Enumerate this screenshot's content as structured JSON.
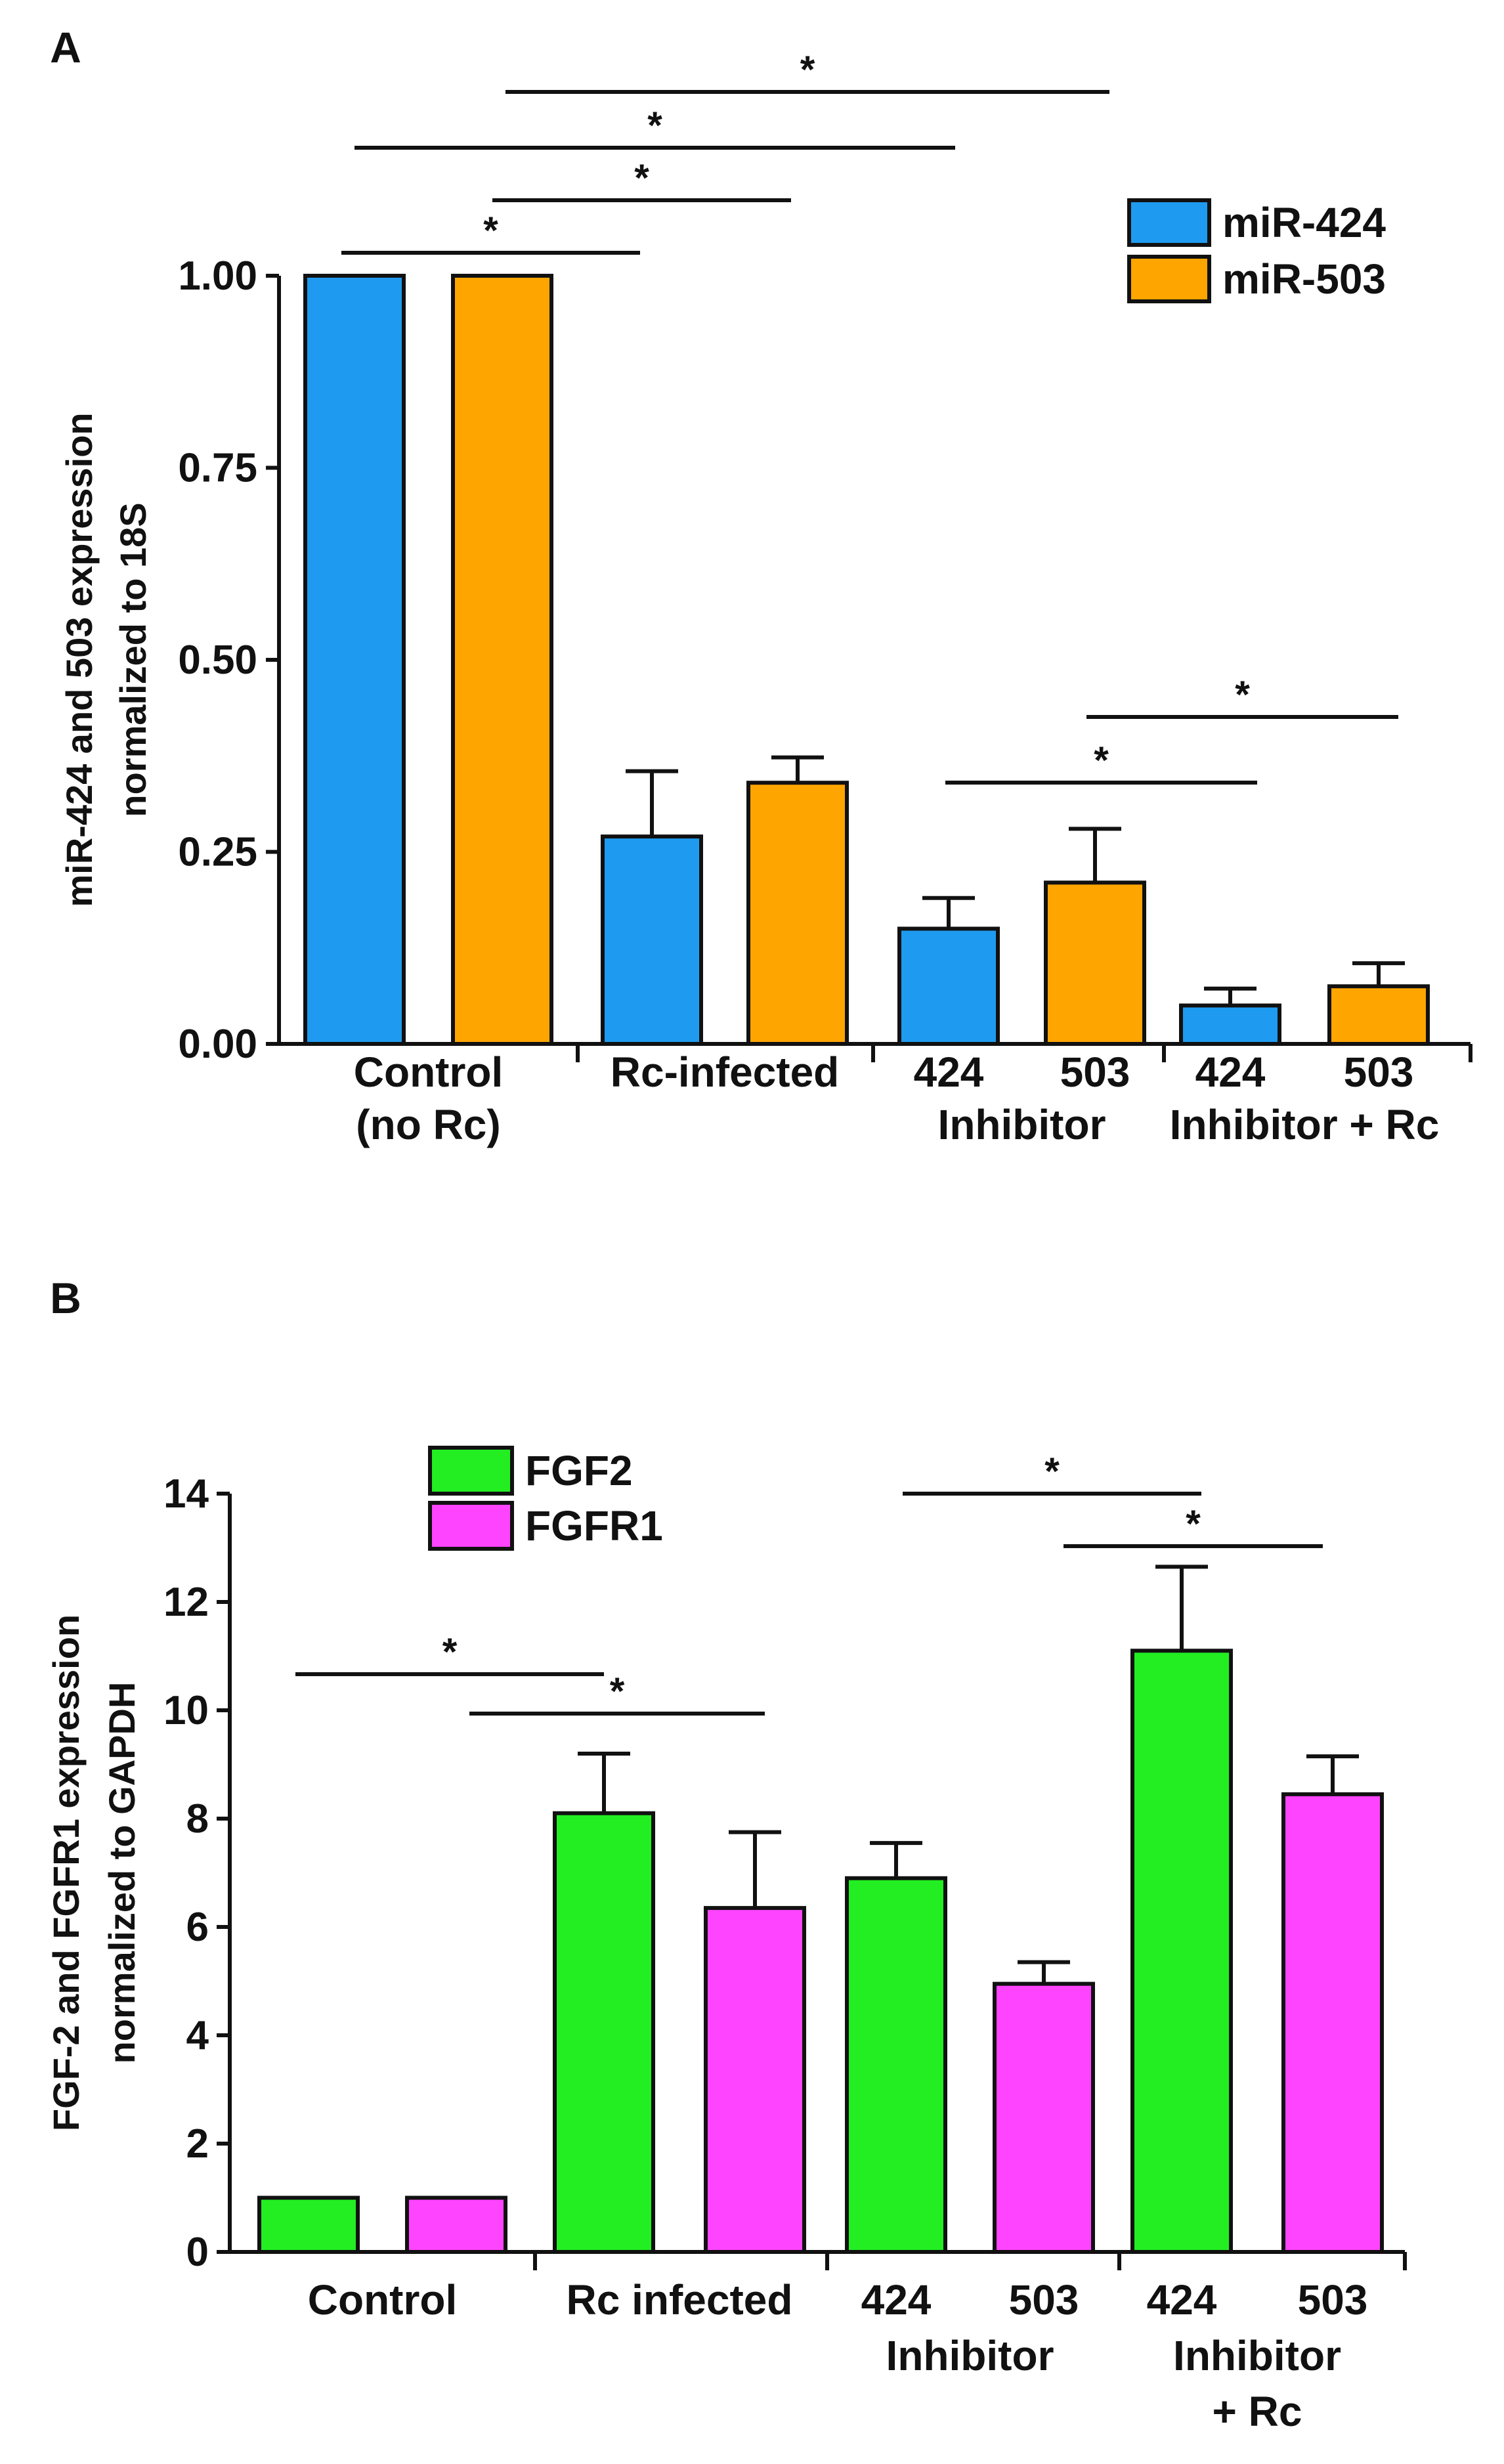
{
  "chart_data": [
    {
      "panel": "A",
      "type": "bar",
      "ylabel": "miR-424 and 503 expression normalized to 18S",
      "ylabel_lines": [
        "miR-424 and 503 expression",
        "normalized to 18S"
      ],
      "ylim": [
        0,
        1.0
      ],
      "yticks": [
        "0.00",
        "0.25",
        "0.50",
        "0.75",
        "1.00"
      ],
      "ytick_values": [
        0,
        0.25,
        0.5,
        0.75,
        1.0
      ],
      "groups": [
        {
          "lines": [
            "Control",
            "(no Rc)"
          ]
        },
        {
          "lines": [
            "Rc-infected"
          ]
        },
        {
          "lines": [
            "424",
            "503",
            "Inhibitor"
          ]
        },
        {
          "lines": [
            "424",
            "503",
            "Inhibitor + Rc"
          ]
        }
      ],
      "series": [
        {
          "name": "miR-424",
          "color": "#1E9BF0",
          "values": [
            1.0,
            0.27,
            0.15,
            0.05
          ],
          "errors": [
            0,
            0.085,
            0.04,
            0.022
          ]
        },
        {
          "name": "miR-503",
          "color": "#FFA500",
          "values": [
            1.0,
            0.34,
            0.21,
            0.075
          ],
          "errors": [
            0,
            0.033,
            0.07,
            0.03
          ]
        }
      ],
      "legend": [
        "miR-424",
        "miR-503"
      ],
      "significance": [
        {
          "label": "*",
          "from": [
            0,
            0
          ],
          "to": [
            1,
            0
          ]
        },
        {
          "label": "*",
          "from": [
            0,
            1
          ],
          "to": [
            1,
            1
          ]
        },
        {
          "label": "*",
          "from": [
            0,
            0
          ],
          "to": [
            2,
            0
          ]
        },
        {
          "label": "*",
          "from": [
            0,
            1
          ],
          "to": [
            2,
            1
          ]
        },
        {
          "label": "*",
          "from": [
            2,
            0
          ],
          "to": [
            3,
            0
          ]
        },
        {
          "label": "*",
          "from": [
            2,
            1
          ],
          "to": [
            3,
            1
          ]
        }
      ]
    },
    {
      "panel": "B",
      "type": "bar",
      "ylabel": "FGF-2 and FGFR1 expression normalized to GAPDH",
      "ylabel_lines": [
        "FGF-2 and FGFR1 expression",
        "normalized to GAPDH"
      ],
      "ylim": [
        0,
        14
      ],
      "yticks": [
        "0",
        "2",
        "4",
        "6",
        "8",
        "10",
        "12",
        "14"
      ],
      "ytick_values": [
        0,
        2,
        4,
        6,
        8,
        10,
        12,
        14
      ],
      "groups": [
        {
          "lines": [
            "Control"
          ]
        },
        {
          "lines": [
            "Rc infected"
          ]
        },
        {
          "lines": [
            "424",
            "503",
            "Inhibitor"
          ]
        },
        {
          "lines": [
            "424",
            "503",
            "Inhibitor",
            "+ Rc"
          ]
        }
      ],
      "series": [
        {
          "name": "FGF2",
          "color": "#22EE22",
          "values": [
            1.0,
            8.1,
            6.9,
            11.1
          ],
          "errors": [
            0,
            1.1,
            0.65,
            1.55
          ]
        },
        {
          "name": "FGFR1",
          "color": "#FF44FF",
          "values": [
            1.0,
            6.35,
            4.95,
            8.45
          ],
          "errors": [
            0,
            1.4,
            0.4,
            0.7
          ]
        }
      ],
      "legend": [
        "FGF2",
        "FGFR1"
      ],
      "significance": [
        {
          "label": "*",
          "from": [
            0,
            0
          ],
          "to": [
            1,
            0
          ]
        },
        {
          "label": "*",
          "from": [
            0,
            1
          ],
          "to": [
            1,
            1
          ]
        },
        {
          "label": "*",
          "from": [
            2,
            0
          ],
          "to": [
            3,
            0
          ]
        },
        {
          "label": "*",
          "from": [
            2,
            1
          ],
          "to": [
            3,
            1
          ]
        }
      ]
    }
  ]
}
